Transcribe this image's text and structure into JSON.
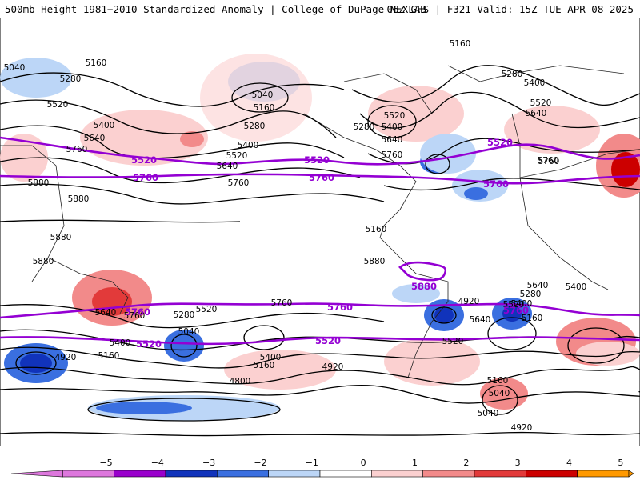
{
  "header": {
    "left_title": "500mb Height 1981−2010 Standardized Anomaly | College of DuPage NEXLAB",
    "right_title": "06Z GFS | F321 Valid: 15Z TUE APR 08 2025"
  },
  "colors": {
    "background": "#ffffff",
    "contour_line": "#000000",
    "thick_contour": "#9400d3",
    "anomaly_levels": {
      "-5": "#dd77dd",
      "-4": "#9900cc",
      "-3": "#1133bb",
      "-2": "#3a6fe0",
      "-1": "#bcd6f7",
      "0": "#ffffff",
      "1": "#fbd0d0",
      "2": "#f28a8a",
      "3": "#e23a3a",
      "4": "#cc0000",
      "5": "#ff9900"
    }
  },
  "map": {
    "projection": "global cylindrical",
    "contour_labels": [
      "5160",
      "5040",
      "5160",
      "5280",
      "5520",
      "5400",
      "5640",
      "5760",
      "5880",
      "5880",
      "5880",
      "5880",
      "5040",
      "5160",
      "5280",
      "5400",
      "5520",
      "5640",
      "5760",
      "5280",
      "5520",
      "5400",
      "5640",
      "5760",
      "5280",
      "5400",
      "5520",
      "5640",
      "5760",
      "5160",
      "5760",
      "5880",
      "5640",
      "5760",
      "5520",
      "5400",
      "5280",
      "5160",
      "5040",
      "4920",
      "5400",
      "5160",
      "4920",
      "4800",
      "5520",
      "5640",
      "5400",
      "5160",
      "5040",
      "4920",
      "5520",
      "5280",
      "5160",
      "5040",
      "4920",
      "5640",
      "5400",
      "5760"
    ],
    "thick_contour_labels": [
      "5520",
      "5760",
      "5520",
      "5760",
      "5520",
      "5760",
      "5880",
      "5760",
      "5520",
      "5760",
      "5520",
      "5760"
    ]
  },
  "legend": {
    "tick_labels": [
      "−5",
      "−4",
      "−3",
      "−2",
      "−1",
      "0",
      "1",
      "2",
      "3",
      "4",
      "5"
    ]
  }
}
